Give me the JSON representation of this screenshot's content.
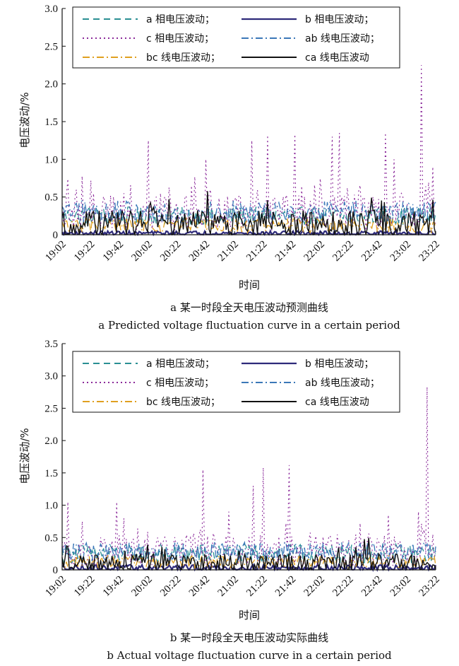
{
  "colors": {
    "a": "#2a8f93",
    "b": "#2e2a7a",
    "c": "#8b2a9a",
    "ab": "#3b78b8",
    "bc": "#e0a020",
    "ca": "#111111"
  },
  "chart_data": [
    {
      "type": "line",
      "caption_cn": "a 某一时段全天电压波动预测曲线",
      "caption_en": "a  Predicted voltage fluctuation curve in a certain period",
      "xlabel": "时间",
      "ylabel": "电压波动/%",
      "ylim": [
        0,
        3.0
      ],
      "yticks": [
        "0",
        "0.5",
        "1.0",
        "1.5",
        "2.0",
        "2.5",
        "3.0"
      ],
      "xticks": [
        "19:02",
        "19:22",
        "19:42",
        "20:02",
        "20:22",
        "20:42",
        "21:02",
        "21:22",
        "21:42",
        "22:02",
        "22:22",
        "22:42",
        "23:02",
        "23:22"
      ],
      "legend": [
        {
          "key": "a",
          "label": "a 相电压波动；",
          "style": "dashed"
        },
        {
          "key": "b",
          "label": "b 相电压波动；",
          "style": "solid"
        },
        {
          "key": "c",
          "label": "c 相电压波动；",
          "style": "dotted"
        },
        {
          "key": "ab",
          "label": "ab 线电压波动；",
          "style": "dashdot"
        },
        {
          "key": "bc",
          "label": "bc 线电压波动；",
          "style": "dashdot"
        },
        {
          "key": "ca",
          "label": "ca 线电压波动",
          "style": "solid"
        }
      ],
      "series": [
        {
          "name": "a 相电压波动",
          "key": "a",
          "base": 0.25,
          "amp": 0.12
        },
        {
          "name": "b 相电压波动",
          "key": "b",
          "base": 0.02,
          "amp": 0.03
        },
        {
          "name": "c 相电压波动",
          "key": "c",
          "base": 0.3,
          "amp": 0.25,
          "peaks": [
            [
              "19:22",
              0.72
            ],
            [
              "19:45",
              0.55
            ],
            [
              "20:02",
              1.25
            ],
            [
              "20:32",
              0.65
            ],
            [
              "20:42",
              1.0
            ],
            [
              "21:14",
              1.25
            ],
            [
              "21:25",
              1.32
            ],
            [
              "21:44",
              1.33
            ],
            [
              "22:10",
              1.3
            ],
            [
              "22:15",
              1.35
            ],
            [
              "22:47",
              1.35
            ],
            [
              "22:53",
              1.0
            ],
            [
              "23:12",
              2.25
            ],
            [
              "23:20",
              0.9
            ]
          ]
        },
        {
          "name": "ab 线电压波动",
          "key": "ab",
          "base": 0.3,
          "amp": 0.15
        },
        {
          "name": "bc 线电压波动",
          "key": "bc",
          "base": 0.12,
          "amp": 0.1
        },
        {
          "name": "ca 线电压波动",
          "key": "ca",
          "base": 0.15,
          "amp": 0.18
        }
      ]
    },
    {
      "type": "line",
      "caption_cn": "b 某一时段全天电压波动实际曲线",
      "caption_en": "b  Actual voltage fluctuation curve in a certain period",
      "xlabel": "时间",
      "ylabel": "电压波动/%",
      "ylim": [
        0,
        3.5
      ],
      "yticks": [
        "0",
        "0.5",
        "1.0",
        "1.5",
        "2.0",
        "2.5",
        "3.0",
        "3.5"
      ],
      "xticks": [
        "19:02",
        "19:22",
        "19:42",
        "20:02",
        "20:22",
        "20:42",
        "21:02",
        "21:22",
        "21:42",
        "22:02",
        "22:22",
        "22:42",
        "23:02",
        "23:22"
      ],
      "legend": [
        {
          "key": "a",
          "label": "a 相电压波动；",
          "style": "dashed"
        },
        {
          "key": "b",
          "label": "b 相电压波动；",
          "style": "solid"
        },
        {
          "key": "c",
          "label": "c 相电压波动；",
          "style": "dotted"
        },
        {
          "key": "ab",
          "label": "ab 线电压波动；",
          "style": "dashdot"
        },
        {
          "key": "bc",
          "label": "bc 线电压波动；",
          "style": "dashdot"
        },
        {
          "key": "ca",
          "label": "ca 线电压波动",
          "style": "solid"
        }
      ],
      "series": [
        {
          "name": "a 相电压波动",
          "key": "a",
          "base": 0.25,
          "amp": 0.15
        },
        {
          "name": "b 相电压波动",
          "key": "b",
          "base": 0.03,
          "amp": 0.05
        },
        {
          "name": "c 相电压波动",
          "key": "c",
          "base": 0.3,
          "amp": 0.25,
          "peaks": [
            [
              "19:06",
              1.05
            ],
            [
              "19:16",
              0.75
            ],
            [
              "19:40",
              1.05
            ],
            [
              "19:45",
              0.8
            ],
            [
              "20:40",
              1.55
            ],
            [
              "20:58",
              0.9
            ],
            [
              "21:15",
              1.3
            ],
            [
              "21:22",
              1.58
            ],
            [
              "21:40",
              1.62
            ],
            [
              "22:49",
              0.85
            ],
            [
              "23:10",
              0.9
            ],
            [
              "23:16",
              2.83
            ],
            [
              "23:20",
              0.55
            ]
          ]
        },
        {
          "name": "ab 线电压波动",
          "key": "ab",
          "base": 0.28,
          "amp": 0.15
        },
        {
          "name": "bc 线电压波动",
          "key": "bc",
          "base": 0.12,
          "amp": 0.1
        },
        {
          "name": "ca 线电压波动",
          "key": "ca",
          "base": 0.1,
          "amp": 0.15
        }
      ]
    }
  ]
}
